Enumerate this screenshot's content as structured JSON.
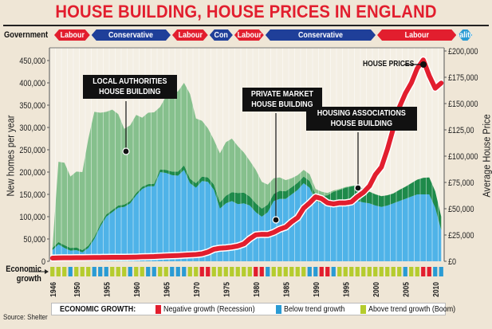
{
  "title": "HOUSE BUILDING, HOUSE PRICES IN ENGLAND",
  "government": {
    "label": "Government",
    "periods": [
      {
        "party": "Labour",
        "type": "lab",
        "from": 1945,
        "to": 1951
      },
      {
        "party": "Conservative",
        "type": "con",
        "from": 1951,
        "to": 1964
      },
      {
        "party": "Labour",
        "type": "lab",
        "from": 1964,
        "to": 1970
      },
      {
        "party": "Con",
        "type": "con",
        "from": 1970,
        "to": 1974
      },
      {
        "party": "Labour",
        "type": "lab",
        "from": 1974,
        "to": 1979
      },
      {
        "party": "Conservative",
        "type": "con",
        "from": 1979,
        "to": 1997
      },
      {
        "party": "Labour",
        "type": "lab",
        "from": 1997,
        "to": 2010
      },
      {
        "party": "Coalition",
        "type": "coa",
        "from": 2010,
        "to": 2011
      }
    ]
  },
  "annotations": {
    "local": [
      "LOCAL AUTHORITIES",
      "HOUSE BUILDING"
    ],
    "private": [
      "PRIVATE MARKET",
      "HOUSE BUILDING"
    ],
    "ha": [
      "HOUSING ASSOCIATIONS",
      "HOUSE BUILDING"
    ],
    "prices": "HOUSE PRICES"
  },
  "economic_growth": {
    "label_line1": "Economic",
    "label_line2": "growth",
    "legend_title": "ECONOMIC GROWTH:",
    "legend": [
      {
        "key": "neg",
        "label": "Negative growth (Recession)",
        "color": "#e21e2e"
      },
      {
        "key": "below",
        "label": "Below trend growth",
        "color": "#2a9bd4"
      },
      {
        "key": "above",
        "label": "Above trend growth (Boom)",
        "color": "#b5cc2e"
      }
    ]
  },
  "source": "Source: Shelter",
  "colors": {
    "private": "#4fb3e8",
    "ha": "#1e8a4a",
    "local": "#86c08d",
    "price_line": "#e21e2e",
    "background": "#efe6d6",
    "plot_bg": "#f4efe4"
  },
  "chart_data": {
    "type": "area",
    "title": "HOUSE BUILDING, HOUSE PRICES IN ENGLAND",
    "xlabel": "",
    "ylabel": "New homes per year",
    "ylabel_right": "Average House Price",
    "ylim": [
      0,
      450000
    ],
    "ylim_right": [
      0,
      200000
    ],
    "grid": false,
    "y_ticks": [
      "0",
      "50,000",
      "100,000",
      "150,000",
      "200,000",
      "250,000",
      "300,000",
      "350,000",
      "400,000",
      "450,000"
    ],
    "y_ticks_right": [
      "£0",
      "£25,000",
      "£50,000",
      "£75,000",
      "£100,000",
      "£125,00",
      "£150,000",
      "£175,000",
      "£200,000"
    ],
    "x_ticks": [
      "1946",
      "1950",
      "1955",
      "1960",
      "1965",
      "1970",
      "1975",
      "1980",
      "1985",
      "1990",
      "1995",
      "2000",
      "2005",
      "2010"
    ],
    "x": [
      1946,
      1947,
      1948,
      1949,
      1950,
      1951,
      1952,
      1953,
      1954,
      1955,
      1956,
      1957,
      1958,
      1959,
      1960,
      1961,
      1962,
      1963,
      1964,
      1965,
      1966,
      1967,
      1968,
      1969,
      1970,
      1971,
      1972,
      1973,
      1974,
      1975,
      1976,
      1977,
      1978,
      1979,
      1980,
      1981,
      1982,
      1983,
      1984,
      1985,
      1986,
      1987,
      1988,
      1989,
      1990,
      1991,
      1992,
      1993,
      1994,
      1995,
      1996,
      1997,
      1998,
      1999,
      2000,
      2001,
      2002,
      2003,
      2004,
      2005,
      2006,
      2007,
      2008,
      2009,
      2010,
      2011
    ],
    "series": [
      {
        "name": "Private market house building",
        "stack": 0,
        "values": [
          25000,
          38000,
          30000,
          24000,
          25000,
          20000,
          30000,
          50000,
          78000,
          100000,
          110000,
          120000,
          122000,
          130000,
          148000,
          162000,
          168000,
          168000,
          200000,
          198000,
          193000,
          192000,
          205000,
          175000,
          165000,
          180000,
          178000,
          160000,
          118000,
          130000,
          135000,
          128000,
          130000,
          125000,
          110000,
          100000,
          110000,
          135000,
          140000,
          140000,
          150000,
          160000,
          175000,
          165000,
          135000,
          130000,
          125000,
          123000,
          125000,
          130000,
          130000,
          135000,
          132000,
          130000,
          125000,
          122000,
          125000,
          130000,
          135000,
          140000,
          145000,
          150000,
          150000,
          150000,
          120000,
          70000
        ]
      },
      {
        "name": "Housing associations house building",
        "stack": 1,
        "values": [
          5000,
          5000,
          6000,
          6000,
          6000,
          5000,
          5000,
          5000,
          5000,
          5000,
          5000,
          5000,
          5000,
          5000,
          5000,
          5000,
          5000,
          6000,
          6000,
          7000,
          8000,
          9000,
          10000,
          10000,
          10000,
          10000,
          10000,
          12000,
          14000,
          17000,
          20000,
          25000,
          24000,
          20000,
          20000,
          18000,
          17000,
          16000,
          18000,
          17000,
          16000,
          16000,
          15000,
          15000,
          15000,
          17000,
          23000,
          33000,
          35000,
          35000,
          38000,
          35000,
          30000,
          26000,
          25000,
          24000,
          23000,
          22000,
          25000,
          27000,
          30000,
          33000,
          37000,
          38000,
          37000,
          30000
        ]
      },
      {
        "name": "Local authorities house building",
        "stack": 2,
        "values": [
          0,
          180000,
          185000,
          160000,
          170000,
          175000,
          240000,
          280000,
          250000,
          230000,
          225000,
          205000,
          170000,
          170000,
          175000,
          155000,
          160000,
          160000,
          140000,
          165000,
          175000,
          180000,
          185000,
          190000,
          145000,
          125000,
          110000,
          100000,
          110000,
          120000,
          120000,
          105000,
          90000,
          80000,
          75000,
          60000,
          45000,
          35000,
          30000,
          25000,
          20000,
          17000,
          15000,
          15000,
          12000,
          9000,
          5000,
          3000,
          2000,
          1500,
          1000,
          1000,
          500,
          300,
          300,
          200,
          200,
          200,
          200,
          200,
          200,
          200,
          200,
          200,
          200,
          200
        ]
      },
      {
        "name": "Average house price",
        "axis": "right",
        "values": [
          1500,
          1700,
          1800,
          1850,
          1900,
          1900,
          2000,
          2050,
          2100,
          2200,
          2250,
          2250,
          2300,
          2350,
          2500,
          2700,
          2850,
          3000,
          3300,
          3600,
          3800,
          4000,
          4300,
          4600,
          4900,
          5600,
          7300,
          9900,
          10900,
          11300,
          12000,
          13000,
          15000,
          19900,
          23600,
          24200,
          24000,
          26000,
          29000,
          31000,
          36000,
          40000,
          49000,
          54000,
          59800,
          58000,
          54000,
          53000,
          54000,
          54000,
          55000,
          60000,
          64000,
          70000,
          81000,
          88000,
          105000,
          125000,
          145000,
          158000,
          168000,
          182000,
          190000,
          175000,
          163000,
          168000
        ]
      },
      {
        "name": "Economic growth",
        "type": "category",
        "values": [
          "above",
          "above",
          "above",
          "below",
          "above",
          "above",
          "above",
          "below",
          "below",
          "below",
          "above",
          "above",
          "above",
          "below",
          "above",
          "above",
          "below",
          "below",
          "above",
          "above",
          "below",
          "below",
          "below",
          "above",
          "above",
          "neg",
          "neg",
          "above",
          "above",
          "above",
          "above",
          "above",
          "above",
          "above",
          "neg",
          "neg",
          "below",
          "above",
          "above",
          "above",
          "above",
          "above",
          "above",
          "below",
          "below",
          "neg",
          "neg",
          "below",
          "above",
          "above",
          "above",
          "above",
          "above",
          "above",
          "above",
          "above",
          "above",
          "above",
          "above",
          "below",
          "above",
          "above",
          "neg",
          "neg",
          "below",
          "below"
        ]
      }
    ]
  }
}
